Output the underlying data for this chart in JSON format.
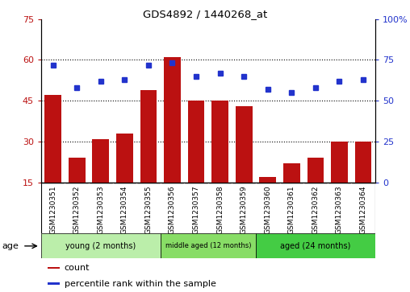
{
  "title": "GDS4892 / 1440268_at",
  "samples": [
    "GSM1230351",
    "GSM1230352",
    "GSM1230353",
    "GSM1230354",
    "GSM1230355",
    "GSM1230356",
    "GSM1230357",
    "GSM1230358",
    "GSM1230359",
    "GSM1230360",
    "GSM1230361",
    "GSM1230362",
    "GSM1230363",
    "GSM1230364"
  ],
  "counts": [
    47,
    24,
    31,
    33,
    49,
    61,
    45,
    45,
    43,
    17,
    22,
    24,
    30,
    30
  ],
  "percentiles": [
    72,
    58,
    62,
    63,
    72,
    73,
    65,
    67,
    65,
    57,
    55,
    58,
    62,
    63
  ],
  "ylim_left": [
    15,
    75
  ],
  "ylim_right": [
    0,
    100
  ],
  "yticks_left": [
    15,
    30,
    45,
    60,
    75
  ],
  "yticks_right": [
    0,
    25,
    50,
    75,
    100
  ],
  "bar_color": "#bb1111",
  "dot_color": "#2233cc",
  "bg_color": "#ffffff",
  "tick_bg_color": "#d8d8d8",
  "groups": [
    {
      "label": "young (2 months)",
      "start": 0,
      "end": 5,
      "color": "#bbeeaa"
    },
    {
      "label": "middle aged (12 months)",
      "start": 5,
      "end": 9,
      "color": "#88dd66"
    },
    {
      "label": "aged (24 months)",
      "start": 9,
      "end": 14,
      "color": "#44cc44"
    }
  ],
  "xlabel_age": "age",
  "legend_count": "count",
  "legend_percentile": "percentile rank within the sample",
  "grid_lines_at": [
    30,
    45,
    60
  ]
}
